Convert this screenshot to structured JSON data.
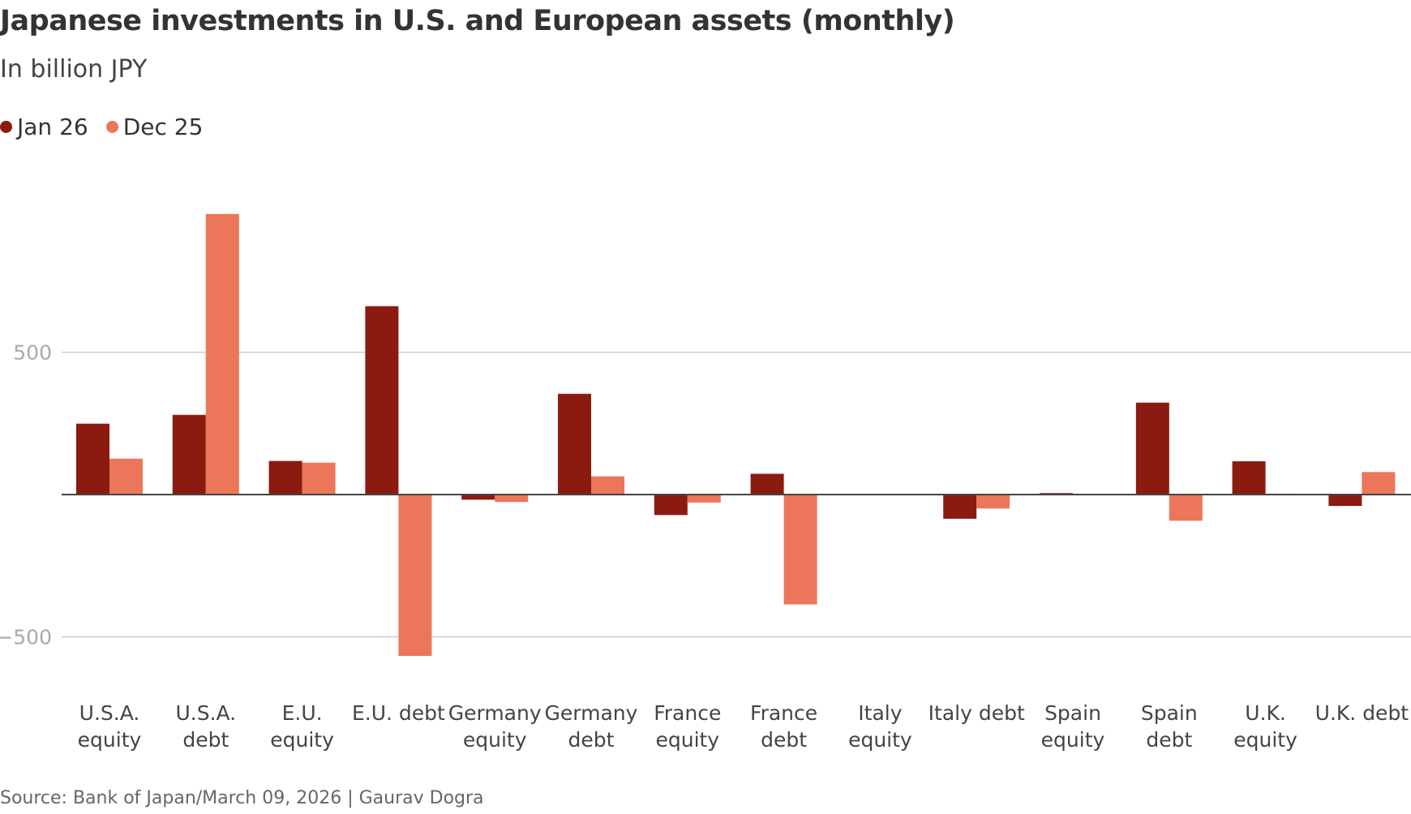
{
  "chart_data": {
    "type": "bar",
    "title": "Japanese investments in U.S. and European assets (monthly)",
    "subtitle": "In billion JPY",
    "categories": [
      [
        "U.S.A.",
        "equity"
      ],
      [
        "U.S.A.",
        "debt"
      ],
      [
        "E.U.",
        "equity"
      ],
      [
        "E.U. debt"
      ],
      [
        "Germany",
        "equity"
      ],
      [
        "Germany",
        "debt"
      ],
      [
        "France",
        "equity"
      ],
      [
        "France",
        "debt"
      ],
      [
        "Italy",
        "equity"
      ],
      [
        "Italy debt"
      ],
      [
        "Spain",
        "equity"
      ],
      [
        "Spain",
        "debt"
      ],
      [
        "U.K.",
        "equity"
      ],
      [
        "U.K. debt"
      ]
    ],
    "series": [
      {
        "name": "Jan 26",
        "color": "#8b1a10",
        "values": [
          249,
          280,
          118,
          662,
          -18,
          354,
          -72,
          73,
          0,
          -85,
          5,
          323,
          117,
          -40
        ]
      },
      {
        "name": "Dec 25",
        "color": "#ec7659",
        "values": [
          126,
          986,
          112,
          -567,
          -26,
          64,
          -28,
          -386,
          0,
          -49,
          0,
          -92,
          3,
          79
        ]
      }
    ],
    "yticks": [
      500,
      -500
    ],
    "ytick_labels": [
      "500",
      "−500"
    ],
    "ylim": [
      -650,
      1050
    ],
    "grid": true,
    "legend_position": "top-left",
    "source": "Source: Bank of Japan/March 09, 2026 | Gaurav Dogra"
  }
}
